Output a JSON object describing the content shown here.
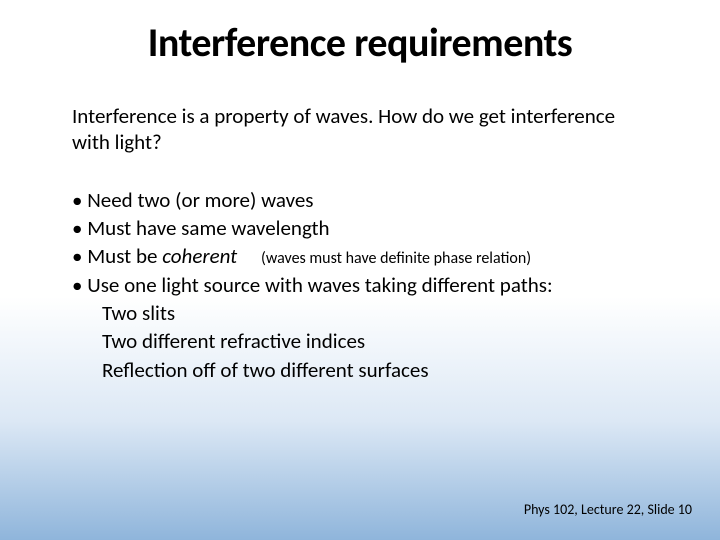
{
  "title": "Interference requirements",
  "intro": "Interference is a property of waves. How do we get interference with light?",
  "bullets": {
    "b1": "Need two (or more) waves",
    "b2": "Must have same wavelength",
    "b3_prefix": "Must be ",
    "b3_em": "coherent",
    "b3_note": "(waves must have definite phase relation)",
    "b4": "Use one light source with waves taking different paths:"
  },
  "subitems": {
    "s1": "Two slits",
    "s2": "Two different refractive indices",
    "s3": "Reflection off of two different surfaces"
  },
  "footer": "Phys 102, Lecture 22, Slide 10",
  "style": {
    "title_fontsize": 40,
    "body_fontsize": 21,
    "note_fontsize": 16,
    "footer_fontsize": 14,
    "text_color": "#000000",
    "bg_gradient_top": "#ffffff",
    "bg_gradient_mid": "#dce8f5",
    "bg_gradient_bottom": "#8fb5db",
    "font_family": "Calibri"
  }
}
